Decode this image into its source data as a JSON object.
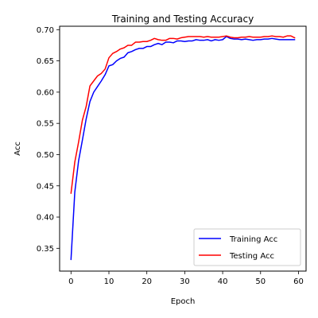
{
  "chart_data": {
    "type": "line",
    "title": "Training and Testing Accuracy",
    "xlabel": "Epoch",
    "ylabel": "Acc",
    "xlim": [
      -3,
      62
    ],
    "ylim": [
      0.3135,
      0.7055
    ],
    "xticks": [
      0,
      10,
      20,
      30,
      40,
      50,
      60
    ],
    "yticks": [
      0.35,
      0.4,
      0.45,
      0.5,
      0.55,
      0.6,
      0.65,
      0.7
    ],
    "grid": false,
    "legend": "lower right",
    "series": [
      {
        "name": "Training Acc",
        "color": "#0000ff",
        "x": [
          0,
          1,
          2,
          3,
          4,
          5,
          6,
          7,
          8,
          9,
          10,
          11,
          12,
          13,
          14,
          15,
          16,
          17,
          18,
          19,
          20,
          21,
          22,
          23,
          24,
          25,
          26,
          27,
          28,
          29,
          30,
          31,
          32,
          33,
          34,
          35,
          36,
          37,
          38,
          39,
          40,
          41,
          42,
          43,
          44,
          45,
          46,
          47,
          48,
          49,
          50,
          51,
          52,
          53,
          54,
          55,
          56,
          57,
          58,
          59
        ],
        "values": [
          0.332,
          0.44,
          0.49,
          0.523,
          0.557,
          0.585,
          0.6,
          0.609,
          0.618,
          0.628,
          0.642,
          0.644,
          0.65,
          0.654,
          0.656,
          0.663,
          0.665,
          0.668,
          0.67,
          0.67,
          0.673,
          0.673,
          0.676,
          0.678,
          0.676,
          0.68,
          0.68,
          0.679,
          0.682,
          0.682,
          0.681,
          0.682,
          0.682,
          0.684,
          0.683,
          0.683,
          0.684,
          0.682,
          0.684,
          0.683,
          0.684,
          0.689,
          0.686,
          0.685,
          0.685,
          0.684,
          0.685,
          0.684,
          0.683,
          0.684,
          0.684,
          0.685,
          0.685,
          0.686,
          0.685,
          0.684,
          0.684,
          0.684,
          0.684,
          0.684
        ]
      },
      {
        "name": "Testing Acc",
        "color": "#ff0000",
        "x": [
          0,
          1,
          2,
          3,
          4,
          5,
          6,
          7,
          8,
          9,
          10,
          11,
          12,
          13,
          14,
          15,
          16,
          17,
          18,
          19,
          20,
          21,
          22,
          23,
          24,
          25,
          26,
          27,
          28,
          29,
          30,
          31,
          32,
          33,
          34,
          35,
          36,
          37,
          38,
          39,
          40,
          41,
          42,
          43,
          44,
          45,
          46,
          47,
          48,
          49,
          50,
          51,
          52,
          53,
          54,
          55,
          56,
          57,
          58,
          59
        ],
        "values": [
          0.438,
          0.488,
          0.52,
          0.555,
          0.577,
          0.61,
          0.618,
          0.626,
          0.63,
          0.637,
          0.655,
          0.662,
          0.665,
          0.669,
          0.671,
          0.675,
          0.675,
          0.68,
          0.68,
          0.681,
          0.681,
          0.683,
          0.686,
          0.684,
          0.683,
          0.683,
          0.686,
          0.686,
          0.685,
          0.687,
          0.688,
          0.689,
          0.689,
          0.689,
          0.689,
          0.688,
          0.689,
          0.688,
          0.688,
          0.688,
          0.689,
          0.69,
          0.688,
          0.687,
          0.687,
          0.688,
          0.688,
          0.689,
          0.688,
          0.688,
          0.688,
          0.689,
          0.689,
          0.69,
          0.689,
          0.689,
          0.688,
          0.69,
          0.69,
          0.687
        ]
      }
    ]
  }
}
